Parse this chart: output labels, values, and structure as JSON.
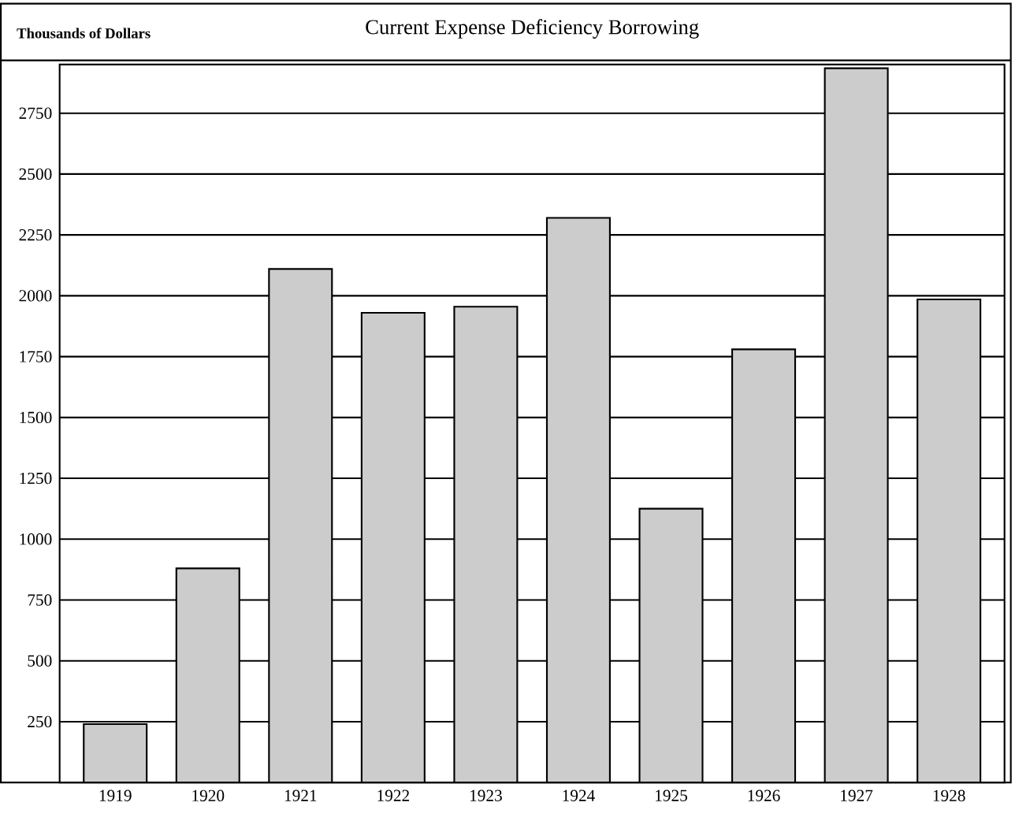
{
  "chart_data": {
    "type": "bar",
    "title": "Current Expense Deficiency Borrowing",
    "ylabel": "Thousands of Dollars",
    "categories": [
      "1919",
      "1920",
      "1921",
      "1922",
      "1923",
      "1924",
      "1925",
      "1926",
      "1927",
      "1928"
    ],
    "values": [
      240,
      880,
      2110,
      1930,
      1955,
      2320,
      1125,
      1780,
      2935,
      1985
    ],
    "color": "#cccccc",
    "ylim": [
      0,
      2950
    ],
    "yticks": [
      250,
      500,
      750,
      1000,
      1250,
      1500,
      1750,
      2000,
      2250,
      2500,
      2750
    ],
    "grid": "y"
  }
}
